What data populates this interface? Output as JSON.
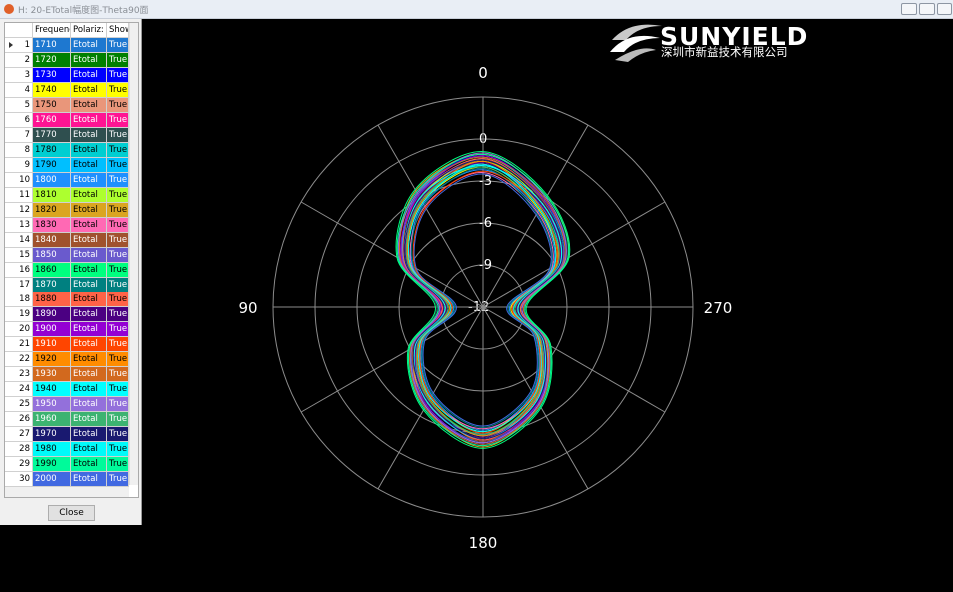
{
  "window": {
    "title": "H: 20-ETotal幅度图-Theta90面"
  },
  "logo": {
    "brand": "SUNYIELD",
    "company": "深圳市新益技术有限公司"
  },
  "table": {
    "columns": [
      "Frequenc",
      "Polariz:",
      "Show"
    ],
    "rows": [
      [
        "1",
        "1710",
        "Etotal",
        "True"
      ],
      [
        "2",
        "1720",
        "Etotal",
        "True"
      ],
      [
        "3",
        "1730",
        "Etotal",
        "True"
      ],
      [
        "4",
        "1740",
        "Etotal",
        "True"
      ],
      [
        "5",
        "1750",
        "Etotal",
        "True"
      ],
      [
        "6",
        "1760",
        "Etotal",
        "True"
      ],
      [
        "7",
        "1770",
        "Etotal",
        "True"
      ],
      [
        "8",
        "1780",
        "Etotal",
        "True"
      ],
      [
        "9",
        "1790",
        "Etotal",
        "True"
      ],
      [
        "10",
        "1800",
        "Etotal",
        "True"
      ],
      [
        "11",
        "1810",
        "Etotal",
        "True"
      ],
      [
        "12",
        "1820",
        "Etotal",
        "True"
      ],
      [
        "13",
        "1830",
        "Etotal",
        "True"
      ],
      [
        "14",
        "1840",
        "Etotal",
        "True"
      ],
      [
        "15",
        "1850",
        "Etotal",
        "True"
      ],
      [
        "16",
        "1860",
        "Etotal",
        "True"
      ],
      [
        "17",
        "1870",
        "Etotal",
        "True"
      ],
      [
        "18",
        "1880",
        "Etotal",
        "True"
      ],
      [
        "19",
        "1890",
        "Etotal",
        "True"
      ],
      [
        "20",
        "1900",
        "Etotal",
        "True"
      ],
      [
        "21",
        "1910",
        "Etotal",
        "True"
      ],
      [
        "22",
        "1920",
        "Etotal",
        "True"
      ],
      [
        "23",
        "1930",
        "Etotal",
        "True"
      ],
      [
        "24",
        "1940",
        "Etotal",
        "True"
      ],
      [
        "25",
        "1950",
        "Etotal",
        "True"
      ],
      [
        "26",
        "1960",
        "Etotal",
        "True"
      ],
      [
        "27",
        "1970",
        "Etotal",
        "True"
      ],
      [
        "28",
        "1980",
        "Etotal",
        "True"
      ],
      [
        "29",
        "1990",
        "Etotal",
        "True"
      ],
      [
        "30",
        "2000",
        "Etotal",
        "True"
      ]
    ]
  },
  "close_button": "Close",
  "chart_data": {
    "type": "polar",
    "theta": [
      0,
      30,
      60,
      90,
      120,
      150,
      180,
      210,
      240,
      270,
      300,
      330
    ],
    "rlim": [
      -12,
      3
    ],
    "rticks": [
      -12,
      -9,
      -6,
      -3,
      0
    ],
    "angleticks": [
      0,
      90,
      180,
      270
    ],
    "angle_grid": [
      0,
      30,
      60,
      90,
      120,
      150,
      180,
      210,
      240,
      270,
      300,
      330
    ],
    "series": [
      {
        "color": "#1e78d0",
        "values": [
          -1.5,
          -2.8,
          -5.4,
          -9.0,
          -6.2,
          -3.9,
          -2.4,
          -4.1,
          -6.8,
          -9.3,
          -5.4,
          -3.3
        ]
      },
      {
        "color": "#008000",
        "values": [
          -1.8,
          -3.2,
          -5.9,
          -9.6,
          -6.7,
          -4.4,
          -2.9,
          -4.6,
          -7.3,
          -9.8,
          -5.9,
          -3.8
        ]
      },
      {
        "color": "#0000ff",
        "values": [
          -1.2,
          -2.6,
          -5.1,
          -8.8,
          -6.0,
          -3.7,
          -2.2,
          -3.9,
          -6.6,
          -9.1,
          -5.2,
          -3.1
        ]
      },
      {
        "color": "#ffff00",
        "values": [
          -2.0,
          -3.4,
          -6.0,
          -9.8,
          -6.9,
          -4.6,
          -3.1,
          -4.8,
          -7.5,
          -10.0,
          -6.1,
          -4.0
        ]
      },
      {
        "color": "#e9967a",
        "values": [
          -1.4,
          -3.1,
          -5.7,
          -9.2,
          -6.3,
          -4.0,
          -2.7,
          -4.4,
          -7.1,
          -9.4,
          -5.5,
          -3.4
        ]
      },
      {
        "color": "#ff1493",
        "values": [
          -1.7,
          -2.9,
          -5.3,
          -9.1,
          -6.5,
          -4.2,
          -2.5,
          -4.2,
          -6.9,
          -9.6,
          -5.7,
          -3.6
        ]
      },
      {
        "color": "#2f4f4f",
        "values": [
          -1.0,
          -2.5,
          -5.0,
          -8.7,
          -5.9,
          -3.6,
          -2.1,
          -3.8,
          -6.5,
          -9.0,
          -5.1,
          -3.0
        ]
      },
      {
        "color": "#00ced1",
        "values": [
          -1.9,
          -3.3,
          -5.8,
          -9.5,
          -6.6,
          -4.3,
          -2.8,
          -4.5,
          -7.2,
          -9.7,
          -5.8,
          -3.7
        ]
      },
      {
        "color": "#00bfff",
        "values": [
          -1.3,
          -2.7,
          -5.5,
          -9.4,
          -6.1,
          -3.8,
          -2.3,
          -4.0,
          -6.7,
          -9.2,
          -5.3,
          -3.2
        ]
      },
      {
        "color": "#1e90ff",
        "values": [
          -2.2,
          -3.5,
          -6.2,
          -9.9,
          -7.0,
          -4.7,
          -3.2,
          -4.9,
          -7.6,
          -10.1,
          -6.2,
          -4.1
        ]
      },
      {
        "color": "#adff2f",
        "values": [
          -1.6,
          -3.0,
          -5.6,
          -9.3,
          -6.4,
          -4.1,
          -2.6,
          -4.3,
          -7.0,
          -9.5,
          -5.6,
          -3.5
        ]
      },
      {
        "color": "#daa520",
        "values": [
          -1.1,
          -2.4,
          -5.2,
          -9.0,
          -6.3,
          -3.8,
          -2.0,
          -4.0,
          -6.8,
          -9.3,
          -5.0,
          -2.9
        ]
      },
      {
        "color": "#ff69b4",
        "values": [
          -2.4,
          -3.7,
          -6.1,
          -9.7,
          -6.8,
          -4.5,
          -3.3,
          -4.7,
          -7.4,
          -9.9,
          -6.3,
          -4.2
        ]
      },
      {
        "color": "#a0522d",
        "values": [
          -1.5,
          -3.2,
          -5.8,
          -9.4,
          -6.2,
          -4.3,
          -2.4,
          -4.5,
          -6.9,
          -9.6,
          -5.8,
          -3.3
        ]
      },
      {
        "color": "#6a5acd",
        "values": [
          -1.8,
          -2.7,
          -5.4,
          -9.2,
          -6.6,
          -4.0,
          -2.9,
          -4.1,
          -7.2,
          -9.4,
          -5.4,
          -3.7
        ]
      },
      {
        "color": "#00ff7f",
        "values": [
          -0.9,
          -2.3,
          -4.9,
          -8.6,
          -5.8,
          -3.5,
          -1.9,
          -3.7,
          -6.4,
          -8.9,
          -4.9,
          -2.8
        ]
      },
      {
        "color": "#008080",
        "values": [
          -2.1,
          -3.6,
          -6.3,
          -10.0,
          -7.1,
          -4.8,
          -3.4,
          -5.0,
          -7.7,
          -10.2,
          -6.4,
          -4.3
        ]
      },
      {
        "color": "#ff6347",
        "values": [
          -1.4,
          -2.9,
          -5.5,
          -9.1,
          -6.3,
          -4.2,
          -2.5,
          -4.4,
          -6.9,
          -9.3,
          -5.5,
          -3.4
        ]
      },
      {
        "color": "#4b0082",
        "values": [
          -1.7,
          -3.1,
          -5.7,
          -9.4,
          -6.5,
          -4.0,
          -2.7,
          -4.2,
          -7.1,
          -9.6,
          -5.7,
          -3.6
        ]
      },
      {
        "color": "#9400d3",
        "values": [
          -1.2,
          -2.8,
          -5.3,
          -9.0,
          -6.1,
          -3.9,
          -2.3,
          -4.1,
          -6.6,
          -9.2,
          -5.2,
          -3.2
        ]
      },
      {
        "color": "#ff4500",
        "values": [
          -2.3,
          -3.8,
          -6.4,
          -9.8,
          -6.9,
          -4.6,
          -3.0,
          -4.8,
          -7.5,
          -9.9,
          -6.0,
          -3.9
        ]
      },
      {
        "color": "#ff8c00",
        "values": [
          -1.6,
          -3.3,
          -5.9,
          -9.6,
          -6.7,
          -4.4,
          -2.8,
          -4.6,
          -7.3,
          -9.7,
          -5.9,
          -3.8
        ]
      },
      {
        "color": "#d2691e",
        "values": [
          -1.3,
          -2.6,
          -5.2,
          -8.9,
          -6.0,
          -3.7,
          -2.2,
          -3.9,
          -6.6,
          -9.1,
          -5.3,
          -3.1
        ]
      },
      {
        "color": "#00ffff",
        "values": [
          -1.9,
          -3.0,
          -5.6,
          -9.3,
          -6.4,
          -4.1,
          -2.6,
          -4.3,
          -7.0,
          -9.5,
          -5.6,
          -3.5
        ]
      },
      {
        "color": "#9370db",
        "values": [
          -1.0,
          -2.6,
          -5.1,
          -8.9,
          -6.1,
          -3.8,
          -2.3,
          -4.0,
          -6.7,
          -9.2,
          -5.2,
          -3.0
        ]
      },
      {
        "color": "#3cb371",
        "values": [
          -2.0,
          -3.2,
          -5.8,
          -9.5,
          -6.6,
          -4.3,
          -2.9,
          -4.5,
          -7.2,
          -9.7,
          -5.8,
          -3.9
        ]
      },
      {
        "color": "#191970",
        "values": [
          -1.5,
          -2.9,
          -5.6,
          -9.2,
          -6.3,
          -4.2,
          -2.6,
          -4.2,
          -6.9,
          -9.4,
          -5.5,
          -3.4
        ]
      },
      {
        "color": "#00fafa",
        "values": [
          -1.8,
          -3.4,
          -6.0,
          -9.7,
          -6.8,
          -4.5,
          -3.1,
          -4.7,
          -7.4,
          -9.8,
          -6.1,
          -3.9
        ]
      },
      {
        "color": "#00fa9a",
        "values": [
          -1.1,
          -2.5,
          -5.0,
          -8.8,
          -5.9,
          -3.6,
          -2.1,
          -3.8,
          -6.5,
          -9.0,
          -5.0,
          -2.9
        ]
      },
      {
        "color": "#4169e1",
        "values": [
          -2.5,
          -3.9,
          -6.5,
          -10.1,
          -7.2,
          -4.9,
          -3.5,
          -5.1,
          -7.8,
          -10.3,
          -6.5,
          -4.4
        ]
      }
    ]
  }
}
